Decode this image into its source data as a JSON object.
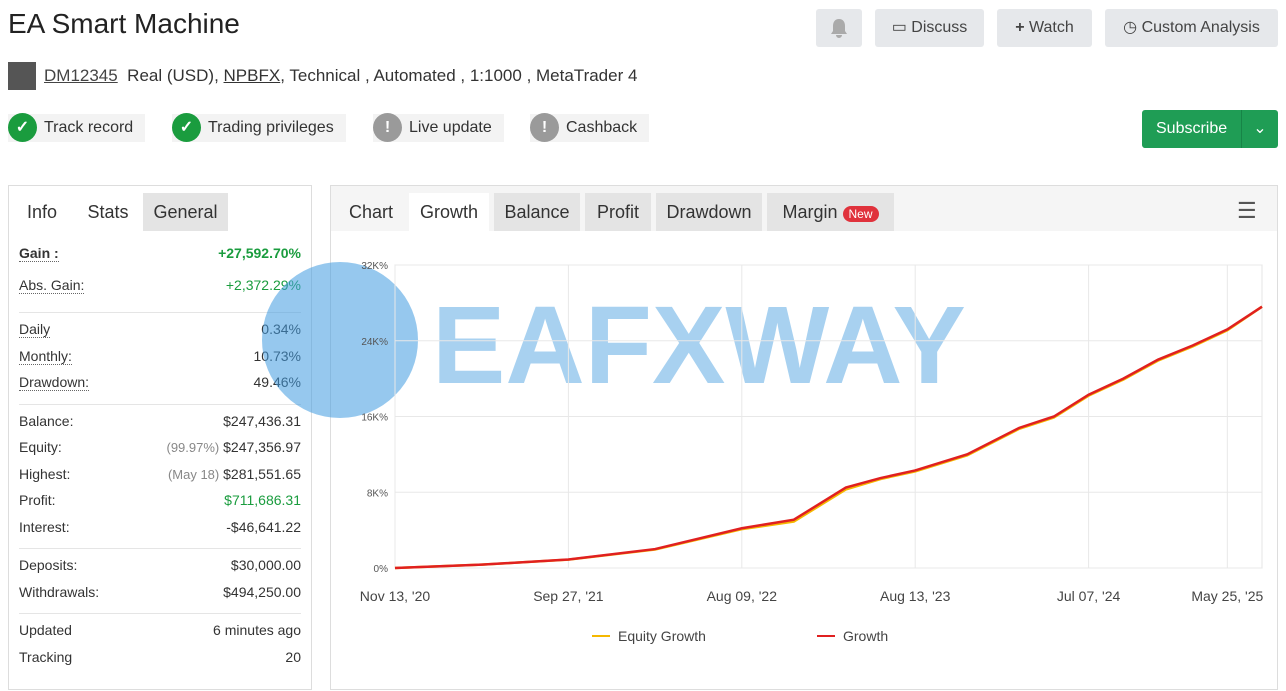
{
  "header": {
    "title": "EA Smart Machine",
    "actions": [
      "Discuss",
      "Watch",
      "Custom Analysis"
    ],
    "account": "DM12345",
    "account_type": "Real (USD),",
    "broker": "NPBFX",
    "details": ", Technical , Automated , 1:1000 , MetaTrader 4",
    "badges": [
      "Track record",
      "Trading privileges",
      "Live update",
      "Cashback"
    ],
    "subscribe": "Subscribe"
  },
  "stats_panel": {
    "tabs": [
      "Info",
      "Stats",
      "General"
    ],
    "groups": [
      [
        {
          "label": "Gain :",
          "value": "+27,592.70%",
          "color": "#1a9c3e"
        },
        {
          "label": "Abs. Gain:",
          "value": "+2,372.29%",
          "color": "#1a9c3e"
        }
      ],
      [
        {
          "label": "Daily",
          "value": "0.34%"
        },
        {
          "label": "Monthly:",
          "value": "10.73%"
        },
        {
          "label": "Drawdown:",
          "value": "49.46%"
        }
      ],
      [
        {
          "label": "Balance:",
          "value": "$247,436.31"
        },
        {
          "label": "Equity:",
          "note": "(99.97%)",
          "value": "$247,356.97"
        },
        {
          "label": "Highest:",
          "note": "(May 18)",
          "value": "$281,551.65"
        },
        {
          "label": "Profit:",
          "value": "$711,686.31",
          "color": "#1a9c3e"
        },
        {
          "label": "Interest:",
          "value": "-$46,641.22"
        }
      ],
      [
        {
          "label": "Deposits:",
          "value": "$30,000.00"
        },
        {
          "label": "Withdrawals:",
          "value": "$494,250.00"
        }
      ],
      [
        {
          "label": "Updated",
          "value": "6 minutes ago"
        },
        {
          "label": "Tracking",
          "value": "20"
        }
      ]
    ]
  },
  "chart_panel": {
    "tabs": [
      "Chart",
      "Growth",
      "Balance",
      "Profit",
      "Drawdown",
      "Margin"
    ],
    "new_badge": "New",
    "watermark": "EAFXWAY"
  },
  "chart_data": {
    "type": "line",
    "x": [
      0,
      0.5,
      1,
      1.5,
      2,
      2.3,
      2.6,
      2.8,
      3,
      3.3,
      3.6,
      3.8,
      4,
      4.2,
      4.4,
      4.6,
      4.8,
      5
    ],
    "series": [
      {
        "name": "Equity Growth",
        "color": "#f5b800",
        "values": [
          0,
          350,
          880,
          1950,
          4100,
          4900,
          8300,
          9400,
          10200,
          11900,
          14700,
          15900,
          18200,
          19900,
          21900,
          23400,
          25100,
          27600
        ]
      },
      {
        "name": "Growth",
        "color": "#e02020",
        "values": [
          0,
          350,
          900,
          2000,
          4200,
          5100,
          8500,
          9500,
          10300,
          12000,
          14800,
          16000,
          18300,
          20000,
          22000,
          23500,
          25200,
          27600
        ]
      }
    ],
    "xlim": [
      0,
      5
    ],
    "xticks": [
      {
        "value": 0,
        "label": "Nov 13, '20"
      },
      {
        "value": 1,
        "label": "Sep 27, '21"
      },
      {
        "value": 2,
        "label": "Aug 09, '22"
      },
      {
        "value": 3,
        "label": "Aug 13, '23"
      },
      {
        "value": 4,
        "label": "Jul 07, '24"
      },
      {
        "value": 4.8,
        "label": "May 25, '25"
      }
    ],
    "ylim": [
      0,
      32000
    ],
    "yticks": [
      {
        "value": 0,
        "label": "0%"
      },
      {
        "value": 8000,
        "label": "8K%"
      },
      {
        "value": 16000,
        "label": "16K%"
      },
      {
        "value": 24000,
        "label": "24K%"
      },
      {
        "value": 32000,
        "label": "32K%"
      }
    ],
    "grid": true
  }
}
